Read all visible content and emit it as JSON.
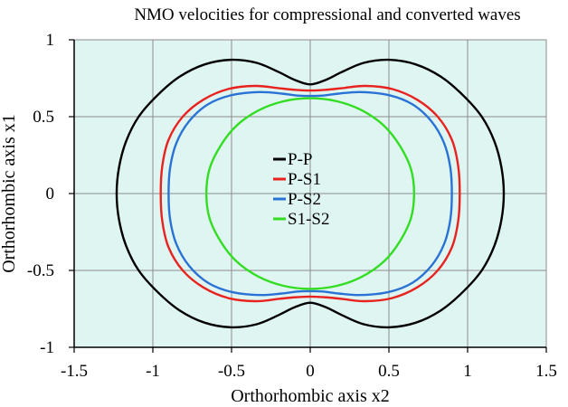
{
  "chart_data": {
    "type": "line",
    "title": "NMO velocities for compressional and converted waves",
    "xlabel": "Orthorhombic axis x2",
    "ylabel": "Orthorhombic axis x1",
    "xlim": [
      -1.5,
      1.5
    ],
    "ylim": [
      -1,
      1
    ],
    "xticks": [
      "-1.5",
      "-1",
      "-0.5",
      "0",
      "0.5",
      "1",
      "1.5"
    ],
    "yticks": [
      "-1",
      "-0.5",
      "0",
      "0.5",
      "1"
    ],
    "grid": true,
    "legend_position": "center",
    "plot_background": "#dff5f2",
    "series": [
      {
        "name": "P-P",
        "color": "#000000",
        "points": [
          [
            1.23,
            0.0
          ],
          [
            1.215,
            0.17
          ],
          [
            1.17,
            0.34
          ],
          [
            1.09,
            0.5
          ],
          [
            0.97,
            0.64
          ],
          [
            0.83,
            0.76
          ],
          [
            0.67,
            0.84
          ],
          [
            0.5,
            0.87
          ],
          [
            0.34,
            0.85
          ],
          [
            0.2,
            0.79
          ],
          [
            0.1,
            0.74
          ],
          [
            0.0,
            0.71
          ],
          [
            -0.1,
            0.74
          ],
          [
            -0.2,
            0.79
          ],
          [
            -0.34,
            0.85
          ],
          [
            -0.5,
            0.87
          ],
          [
            -0.67,
            0.84
          ],
          [
            -0.83,
            0.76
          ],
          [
            -0.97,
            0.64
          ],
          [
            -1.09,
            0.5
          ],
          [
            -1.17,
            0.34
          ],
          [
            -1.215,
            0.17
          ],
          [
            -1.23,
            0.0
          ],
          [
            -1.215,
            -0.17
          ],
          [
            -1.17,
            -0.34
          ],
          [
            -1.09,
            -0.5
          ],
          [
            -0.97,
            -0.64
          ],
          [
            -0.83,
            -0.76
          ],
          [
            -0.67,
            -0.84
          ],
          [
            -0.5,
            -0.87
          ],
          [
            -0.34,
            -0.85
          ],
          [
            -0.2,
            -0.79
          ],
          [
            -0.1,
            -0.74
          ],
          [
            0.0,
            -0.71
          ],
          [
            0.1,
            -0.74
          ],
          [
            0.2,
            -0.79
          ],
          [
            0.34,
            -0.85
          ],
          [
            0.5,
            -0.87
          ],
          [
            0.67,
            -0.84
          ],
          [
            0.83,
            -0.76
          ],
          [
            0.97,
            -0.64
          ],
          [
            1.09,
            -0.5
          ],
          [
            1.17,
            -0.34
          ],
          [
            1.215,
            -0.17
          ],
          [
            1.23,
            0.0
          ]
        ]
      },
      {
        "name": "P-S1",
        "color": "#e8231f",
        "points": [
          [
            0.95,
            0.0
          ],
          [
            0.94,
            0.18
          ],
          [
            0.9,
            0.35
          ],
          [
            0.81,
            0.5
          ],
          [
            0.68,
            0.61
          ],
          [
            0.52,
            0.68
          ],
          [
            0.35,
            0.7
          ],
          [
            0.2,
            0.685
          ],
          [
            0.1,
            0.675
          ],
          [
            0.0,
            0.67
          ],
          [
            -0.1,
            0.675
          ],
          [
            -0.2,
            0.685
          ],
          [
            -0.35,
            0.7
          ],
          [
            -0.52,
            0.68
          ],
          [
            -0.68,
            0.61
          ],
          [
            -0.81,
            0.5
          ],
          [
            -0.9,
            0.35
          ],
          [
            -0.94,
            0.18
          ],
          [
            -0.95,
            0.0
          ],
          [
            -0.94,
            -0.18
          ],
          [
            -0.9,
            -0.35
          ],
          [
            -0.81,
            -0.5
          ],
          [
            -0.68,
            -0.61
          ],
          [
            -0.52,
            -0.68
          ],
          [
            -0.35,
            -0.7
          ],
          [
            -0.2,
            -0.685
          ],
          [
            -0.1,
            -0.675
          ],
          [
            0.0,
            -0.67
          ],
          [
            0.1,
            -0.675
          ],
          [
            0.2,
            -0.685
          ],
          [
            0.35,
            -0.7
          ],
          [
            0.52,
            -0.68
          ],
          [
            0.68,
            -0.61
          ],
          [
            0.81,
            -0.5
          ],
          [
            0.9,
            -0.35
          ],
          [
            0.94,
            -0.18
          ],
          [
            0.95,
            0.0
          ]
        ]
      },
      {
        "name": "P-S2",
        "color": "#2a72d4",
        "points": [
          [
            0.9,
            0.0
          ],
          [
            0.89,
            0.17
          ],
          [
            0.85,
            0.33
          ],
          [
            0.77,
            0.47
          ],
          [
            0.65,
            0.58
          ],
          [
            0.5,
            0.64
          ],
          [
            0.32,
            0.66
          ],
          [
            0.18,
            0.65
          ],
          [
            0.08,
            0.637
          ],
          [
            0.0,
            0.635
          ],
          [
            -0.08,
            0.637
          ],
          [
            -0.18,
            0.65
          ],
          [
            -0.32,
            0.66
          ],
          [
            -0.5,
            0.64
          ],
          [
            -0.65,
            0.58
          ],
          [
            -0.77,
            0.47
          ],
          [
            -0.85,
            0.33
          ],
          [
            -0.89,
            0.17
          ],
          [
            -0.9,
            0.0
          ],
          [
            -0.89,
            -0.17
          ],
          [
            -0.85,
            -0.33
          ],
          [
            -0.77,
            -0.47
          ],
          [
            -0.65,
            -0.58
          ],
          [
            -0.5,
            -0.64
          ],
          [
            -0.32,
            -0.66
          ],
          [
            -0.18,
            -0.65
          ],
          [
            -0.08,
            -0.637
          ],
          [
            0.0,
            -0.635
          ],
          [
            0.08,
            -0.637
          ],
          [
            0.18,
            -0.65
          ],
          [
            0.32,
            -0.66
          ],
          [
            0.5,
            -0.64
          ],
          [
            0.65,
            -0.58
          ],
          [
            0.77,
            -0.47
          ],
          [
            0.85,
            -0.33
          ],
          [
            0.89,
            -0.17
          ],
          [
            0.9,
            0.0
          ]
        ]
      },
      {
        "name": "S1-S2",
        "color": "#33dd22",
        "points": [
          [
            0.66,
            0.0
          ],
          [
            0.64,
            0.16
          ],
          [
            0.57,
            0.31
          ],
          [
            0.47,
            0.44
          ],
          [
            0.33,
            0.54
          ],
          [
            0.17,
            0.6
          ],
          [
            0.0,
            0.62
          ],
          [
            -0.17,
            0.6
          ],
          [
            -0.33,
            0.54
          ],
          [
            -0.47,
            0.44
          ],
          [
            -0.57,
            0.31
          ],
          [
            -0.64,
            0.16
          ],
          [
            -0.66,
            0.0
          ],
          [
            -0.64,
            -0.16
          ],
          [
            -0.57,
            -0.31
          ],
          [
            -0.47,
            -0.44
          ],
          [
            -0.33,
            -0.54
          ],
          [
            -0.17,
            -0.6
          ],
          [
            0.0,
            -0.62
          ],
          [
            0.17,
            -0.6
          ],
          [
            0.33,
            -0.54
          ],
          [
            0.47,
            -0.44
          ],
          [
            0.57,
            -0.31
          ],
          [
            0.64,
            -0.16
          ],
          [
            0.66,
            0.0
          ]
        ]
      }
    ]
  }
}
